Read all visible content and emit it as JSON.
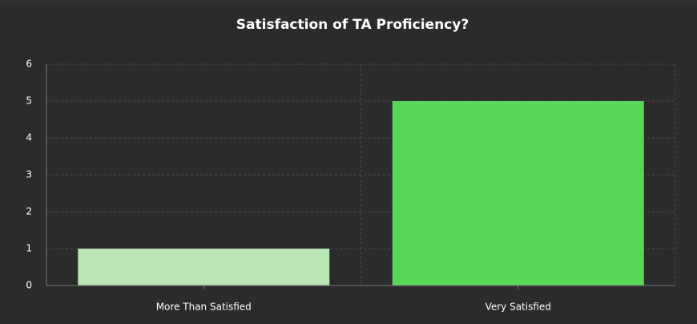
{
  "chart_data": {
    "type": "bar",
    "title": "Satisfaction of TA Proficiency?",
    "categories": [
      "More Than Satisfied",
      "Very Satisfied"
    ],
    "values": [
      1,
      5
    ],
    "colors": [
      "#b9e4b4",
      "#58d858"
    ],
    "ylim": [
      0,
      6
    ],
    "yticks": [
      0,
      1,
      2,
      3,
      4,
      5,
      6
    ],
    "grid": true
  }
}
